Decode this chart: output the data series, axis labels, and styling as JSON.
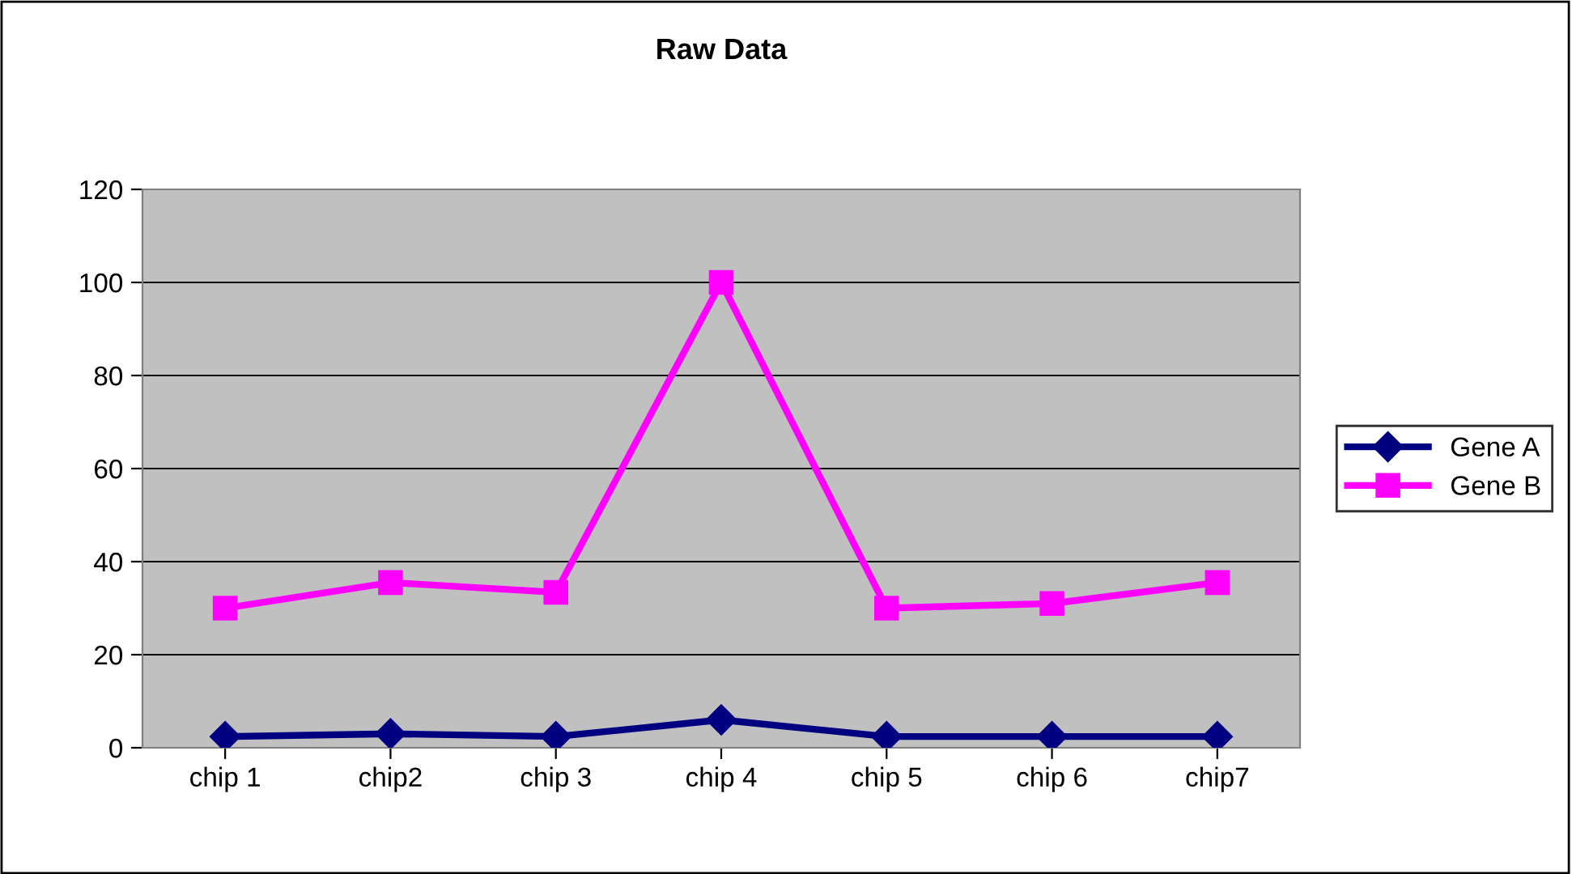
{
  "chart_data": {
    "type": "line",
    "title": "Raw Data",
    "categories": [
      "chip 1",
      "chip2",
      "chip 3",
      "chip 4",
      "chip 5",
      "chip 6",
      "chip7"
    ],
    "series": [
      {
        "name": "Gene A",
        "color": "#000080",
        "marker": "diamond",
        "values": [
          2.4,
          3,
          2.4,
          6,
          2.4,
          2.4,
          2.4
        ]
      },
      {
        "name": "Gene B",
        "color": "#ff00ff",
        "marker": "square",
        "values": [
          30,
          35.5,
          33.4,
          100,
          30,
          31,
          35.5
        ]
      }
    ],
    "ylim": [
      0,
      120
    ],
    "yticks": [
      0,
      20,
      40,
      60,
      80,
      100,
      120
    ],
    "grid": "y",
    "legend": "right"
  }
}
